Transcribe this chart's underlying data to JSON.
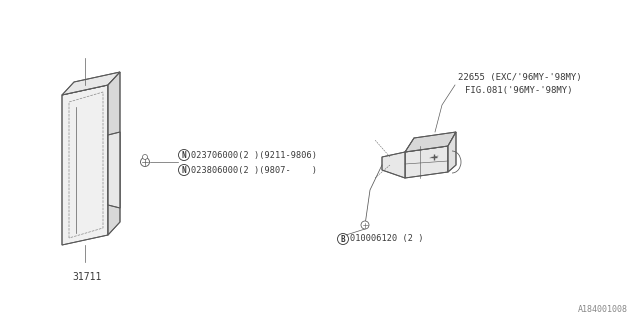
{
  "bg_color": "#ffffff",
  "watermark": "A184001008",
  "part_31711_label": "31711",
  "part_22655_line1": "22655 (EXC/'96MY-'98MY)",
  "part_22655_line2": "FIG.081('96MY-'98MY)",
  "bolt_n1_label": "023706000(2 )(9211-9806)",
  "bolt_n2_label": "023806000(2 )(9807-    )",
  "bolt_b_label": "010006120 (2 )",
  "line_color": "#5a5a5a",
  "text_color": "#3a3a3a"
}
